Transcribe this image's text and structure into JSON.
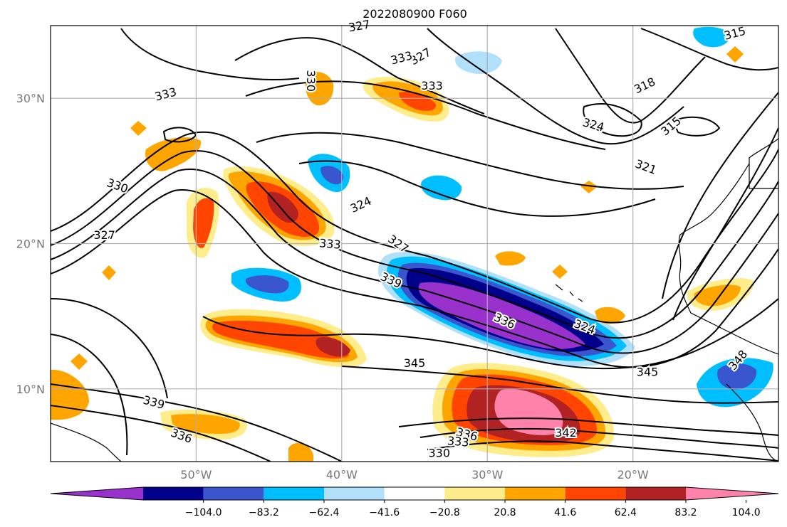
{
  "title": "2022080900 F060",
  "map": {
    "lon_range": [
      -60,
      -10
    ],
    "lat_range": [
      5,
      35
    ],
    "lon_ticks": [
      {
        "value": -50,
        "label": "50°W"
      },
      {
        "value": -40,
        "label": "40°W"
      },
      {
        "value": -30,
        "label": "30°W"
      },
      {
        "value": -20,
        "label": "20°W"
      }
    ],
    "lat_ticks": [
      {
        "value": 10,
        "label": "10°N"
      },
      {
        "value": 20,
        "label": "20°N"
      },
      {
        "value": 30,
        "label": "30°N"
      }
    ],
    "grid": true
  },
  "contour_labels": [
    {
      "text": "327",
      "lon": -38.8,
      "lat": 35.0,
      "rot": -10
    },
    {
      "text": "315",
      "lon": -13.0,
      "lat": 34.5,
      "rot": -15
    },
    {
      "text": "327",
      "lon": -34.6,
      "lat": 32.9,
      "rot": -30
    },
    {
      "text": "333",
      "lon": -35.9,
      "lat": 32.8,
      "rot": -15
    },
    {
      "text": "330",
      "lon": -42.1,
      "lat": 31.2,
      "rot": 90
    },
    {
      "text": "333",
      "lon": -33.8,
      "lat": 30.9,
      "rot": 0
    },
    {
      "text": "318",
      "lon": -19.2,
      "lat": 30.9,
      "rot": -25
    },
    {
      "text": "333",
      "lon": -52.1,
      "lat": 30.3,
      "rot": -15
    },
    {
      "text": "324",
      "lon": -22.7,
      "lat": 28.2,
      "rot": 15
    },
    {
      "text": "315",
      "lon": -17.4,
      "lat": 28.1,
      "rot": -40
    },
    {
      "text": "321",
      "lon": -19.1,
      "lat": 25.3,
      "rot": 20
    },
    {
      "text": "330",
      "lon": -55.4,
      "lat": 24.0,
      "rot": 20
    },
    {
      "text": "324",
      "lon": -38.7,
      "lat": 22.7,
      "rot": -25
    },
    {
      "text": "327",
      "lon": -56.3,
      "lat": 20.6,
      "rot": 0
    },
    {
      "text": "327",
      "lon": -36.1,
      "lat": 20.0,
      "rot": 35
    },
    {
      "text": "333",
      "lon": -40.8,
      "lat": 20.0,
      "rot": 5
    },
    {
      "text": "339",
      "lon": -36.6,
      "lat": 17.5,
      "rot": 25
    },
    {
      "text": "336",
      "lon": -28.8,
      "lat": 14.7,
      "rot": 25
    },
    {
      "text": "324",
      "lon": -23.3,
      "lat": 14.3,
      "rot": 20
    },
    {
      "text": "348",
      "lon": -12.8,
      "lat": 12.0,
      "rot": -50
    },
    {
      "text": "345",
      "lon": -35.0,
      "lat": 11.8,
      "rot": 0
    },
    {
      "text": "345",
      "lon": -19.0,
      "lat": 11.2,
      "rot": 0
    },
    {
      "text": "339",
      "lon": -52.9,
      "lat": 9.1,
      "rot": 15
    },
    {
      "text": "336",
      "lon": -51.0,
      "lat": 6.8,
      "rot": 20
    },
    {
      "text": "342",
      "lon": -24.6,
      "lat": 7.0,
      "rot": 0
    },
    {
      "text": "336",
      "lon": -31.4,
      "lat": 6.9,
      "rot": 15
    },
    {
      "text": "333",
      "lon": -32.0,
      "lat": 6.4,
      "rot": 5
    },
    {
      "text": "330",
      "lon": -33.3,
      "lat": 5.6,
      "rot": 0
    }
  ],
  "colorbar": {
    "colors": [
      "#9932cc",
      "#00008b",
      "#3a56cf",
      "#00bfff",
      "#b0e0fa",
      "#ffffff",
      "#ffec8b",
      "#ffa500",
      "#ff4500",
      "#b22222",
      "#ff82ab"
    ],
    "tick_labels": [
      "−104.0",
      "−83.2",
      "−62.4",
      "−41.6",
      "−20.8",
      "20.8",
      "41.6",
      "62.4",
      "83.2",
      "104.0"
    ],
    "extend": "both"
  }
}
